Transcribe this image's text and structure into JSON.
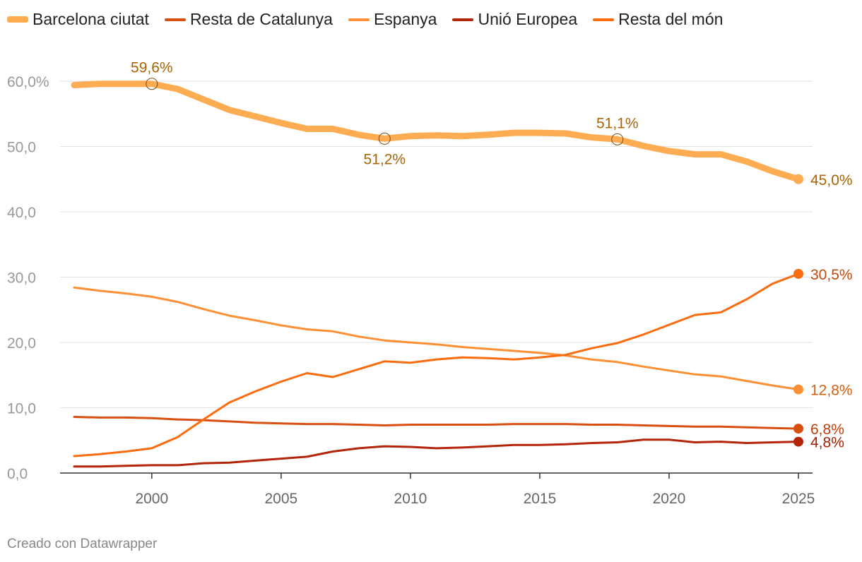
{
  "legend": [
    {
      "name": "Barcelona ciutat",
      "color": "#fdac52",
      "thick": true
    },
    {
      "name": "Resta de Catalunya",
      "color": "#d84f12",
      "thick": false
    },
    {
      "name": "Espanya",
      "color": "#fd9035",
      "thick": false
    },
    {
      "name": "Unió Europea",
      "color": "#b32508",
      "thick": false
    },
    {
      "name": "Resta del món",
      "color": "#fa6c0e",
      "thick": false
    }
  ],
  "footer": {
    "credit": "Creado con Datawrapper"
  },
  "chart_data": {
    "type": "line",
    "title": "",
    "xlabel": "",
    "ylabel": "",
    "x": [
      1997,
      1998,
      1999,
      2000,
      2001,
      2002,
      2003,
      2004,
      2005,
      2006,
      2007,
      2008,
      2009,
      2010,
      2011,
      2012,
      2013,
      2014,
      2015,
      2016,
      2017,
      2018,
      2019,
      2020,
      2021,
      2022,
      2023,
      2024,
      2025
    ],
    "xlim": [
      1997,
      2025
    ],
    "ylim": [
      0,
      60
    ],
    "x_ticks": [
      2000,
      2005,
      2010,
      2015,
      2020,
      2025
    ],
    "x_tick_labels": [
      "2000",
      "2005",
      "2010",
      "2015",
      "2020",
      "2025"
    ],
    "y_ticks": [
      0,
      10,
      20,
      30,
      40,
      50,
      60
    ],
    "y_tick_labels": [
      "0,0",
      "10,0",
      "20,0",
      "30,0",
      "40,0",
      "50,0",
      "60,0%"
    ],
    "grid": true,
    "series": [
      {
        "name": "Barcelona ciutat",
        "color": "#fdac52",
        "width": 9,
        "values": [
          59.4,
          59.6,
          59.6,
          59.6,
          58.8,
          57.2,
          55.6,
          54.6,
          53.6,
          52.7,
          52.7,
          51.8,
          51.2,
          51.6,
          51.7,
          51.6,
          51.8,
          52.1,
          52.1,
          52.0,
          51.4,
          51.1,
          50.1,
          49.3,
          48.8,
          48.8,
          47.7,
          46.2,
          45.0
        ]
      },
      {
        "name": "Espanya",
        "color": "#fd9035",
        "width": 3,
        "values": [
          28.4,
          27.9,
          27.5,
          27.0,
          26.2,
          25.1,
          24.1,
          23.4,
          22.6,
          22.0,
          21.7,
          20.9,
          20.3,
          20.0,
          19.7,
          19.3,
          19.0,
          18.7,
          18.4,
          18.0,
          17.4,
          17.0,
          16.3,
          15.7,
          15.1,
          14.8,
          14.1,
          13.4,
          12.8
        ]
      },
      {
        "name": "Resta de Catalunya",
        "color": "#d84f12",
        "width": 3,
        "values": [
          8.6,
          8.5,
          8.5,
          8.4,
          8.2,
          8.1,
          7.9,
          7.7,
          7.6,
          7.5,
          7.5,
          7.4,
          7.3,
          7.4,
          7.4,
          7.4,
          7.4,
          7.5,
          7.5,
          7.5,
          7.4,
          7.4,
          7.3,
          7.2,
          7.1,
          7.1,
          7.0,
          6.9,
          6.8
        ]
      },
      {
        "name": "Unió Europea",
        "color": "#b32508",
        "width": 3,
        "values": [
          1.0,
          1.0,
          1.1,
          1.2,
          1.2,
          1.5,
          1.6,
          1.9,
          2.2,
          2.5,
          3.3,
          3.8,
          4.1,
          4.0,
          3.8,
          3.9,
          4.1,
          4.3,
          4.3,
          4.4,
          4.6,
          4.7,
          5.1,
          5.1,
          4.7,
          4.8,
          4.6,
          4.7,
          4.8
        ]
      },
      {
        "name": "Resta del món",
        "color": "#fa6c0e",
        "width": 3,
        "values": [
          2.6,
          2.9,
          3.3,
          3.8,
          5.5,
          8.2,
          10.8,
          12.5,
          14.0,
          15.3,
          14.7,
          15.9,
          17.1,
          16.9,
          17.4,
          17.7,
          17.6,
          17.4,
          17.7,
          18.1,
          19.1,
          19.9,
          21.2,
          22.7,
          24.2,
          24.6,
          26.6,
          29.0,
          30.5
        ]
      }
    ],
    "annotations": [
      {
        "series": "Barcelona ciutat",
        "x": 2000,
        "y": 59.6,
        "text": "59,6%",
        "pos": "above",
        "color": "#a86505"
      },
      {
        "series": "Barcelona ciutat",
        "x": 2009,
        "y": 51.2,
        "text": "51,2%",
        "pos": "below",
        "color": "#a86505"
      },
      {
        "series": "Barcelona ciutat",
        "x": 2018,
        "y": 51.1,
        "text": "51,1%",
        "pos": "above",
        "color": "#a86505"
      }
    ],
    "end_labels": [
      {
        "series": "Barcelona ciutat",
        "y": 45.0,
        "text": "45,0%",
        "color": "#a86505",
        "dot": "#fdac52"
      },
      {
        "series": "Resta del món",
        "y": 30.5,
        "text": "30,5%",
        "color": "#c4490a",
        "dot": "#fa6c0e"
      },
      {
        "series": "Espanya",
        "y": 12.8,
        "text": "12,8%",
        "color": "#d2600f",
        "dot": "#fd9035"
      },
      {
        "series": "Resta de Catalunya",
        "y": 6.8,
        "text": "6,8%",
        "color": "#c23e08",
        "dot": "#d84f12"
      },
      {
        "series": "Unió Europea",
        "y": 4.8,
        "text": "4,8%",
        "color": "#a12006",
        "dot": "#b32508"
      }
    ]
  }
}
